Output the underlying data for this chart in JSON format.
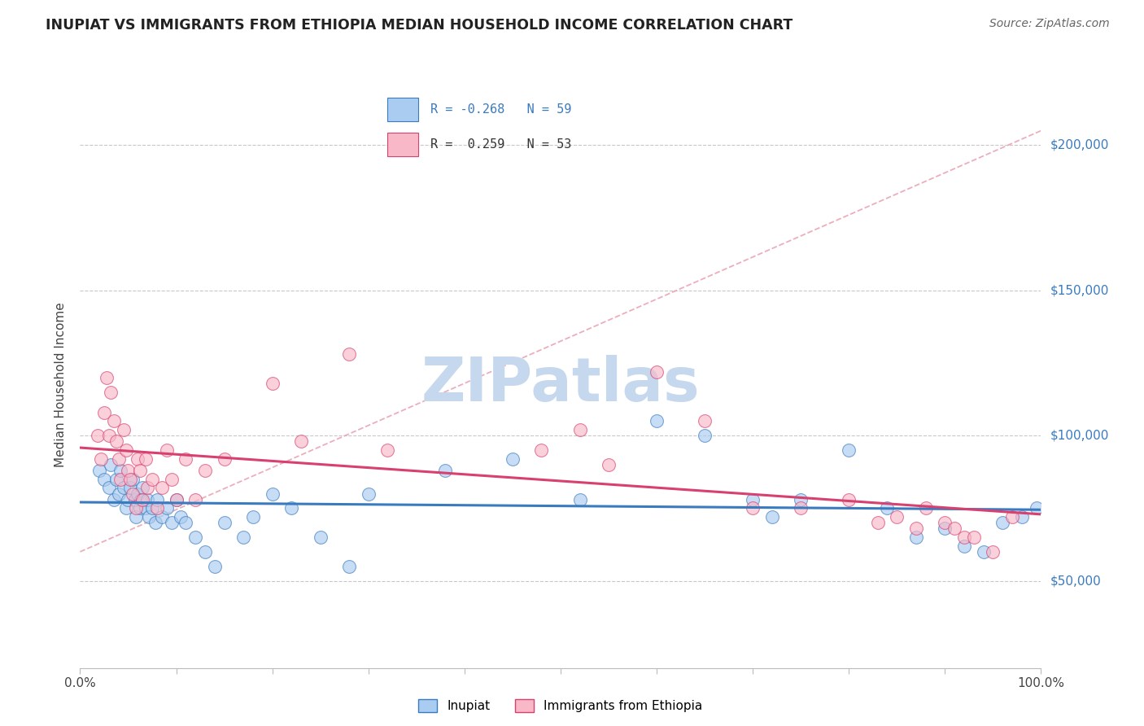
{
  "title": "INUPIAT VS IMMIGRANTS FROM ETHIOPIA MEDIAN HOUSEHOLD INCOME CORRELATION CHART",
  "source": "Source: ZipAtlas.com",
  "ylabel": "Median Household Income",
  "xlim": [
    0,
    1.0
  ],
  "ylim": [
    20000,
    215000
  ],
  "xticks": [
    0,
    0.1,
    0.2,
    0.3,
    0.4,
    0.5,
    0.6,
    0.7,
    0.8,
    0.9,
    1.0
  ],
  "xticklabels": [
    "0.0%",
    "",
    "",
    "",
    "",
    "",
    "",
    "",
    "",
    "",
    "100.0%"
  ],
  "ytick_positions": [
    50000,
    100000,
    150000,
    200000
  ],
  "ytick_labels": [
    "$50,000",
    "$100,000",
    "$150,000",
    "$200,000"
  ],
  "legend_r1": "R = -0.268",
  "legend_n1": "N = 59",
  "legend_r2": "R =  0.259",
  "legend_n2": "N = 53",
  "color_blue": "#aaccf0",
  "color_pink": "#f8b8c8",
  "line_blue": "#3a7bbf",
  "line_pink": "#d84070",
  "line_dashed_color": "#e8a0b0",
  "background": "#ffffff",
  "grid_color": "#c8c8c8",
  "watermark_color": "#c5d8ee",
  "inupiat_x": [
    0.02,
    0.025,
    0.03,
    0.032,
    0.035,
    0.038,
    0.04,
    0.042,
    0.045,
    0.048,
    0.05,
    0.052,
    0.055,
    0.057,
    0.058,
    0.06,
    0.062,
    0.063,
    0.065,
    0.068,
    0.07,
    0.072,
    0.075,
    0.078,
    0.08,
    0.085,
    0.09,
    0.095,
    0.1,
    0.105,
    0.11,
    0.12,
    0.13,
    0.14,
    0.15,
    0.17,
    0.18,
    0.2,
    0.22,
    0.25,
    0.28,
    0.3,
    0.38,
    0.45,
    0.52,
    0.6,
    0.65,
    0.7,
    0.72,
    0.75,
    0.8,
    0.84,
    0.87,
    0.9,
    0.92,
    0.94,
    0.96,
    0.98,
    0.995
  ],
  "inupiat_y": [
    88000,
    85000,
    82000,
    90000,
    78000,
    85000,
    80000,
    88000,
    82000,
    75000,
    78000,
    82000,
    85000,
    78000,
    72000,
    80000,
    75000,
    78000,
    82000,
    75000,
    78000,
    72000,
    75000,
    70000,
    78000,
    72000,
    75000,
    70000,
    78000,
    72000,
    70000,
    65000,
    60000,
    55000,
    70000,
    65000,
    72000,
    80000,
    75000,
    65000,
    55000,
    80000,
    88000,
    92000,
    78000,
    105000,
    100000,
    78000,
    72000,
    78000,
    95000,
    75000,
    65000,
    68000,
    62000,
    60000,
    70000,
    72000,
    75000
  ],
  "ethiopia_x": [
    0.018,
    0.022,
    0.025,
    0.028,
    0.03,
    0.032,
    0.035,
    0.038,
    0.04,
    0.042,
    0.045,
    0.048,
    0.05,
    0.052,
    0.055,
    0.058,
    0.06,
    0.062,
    0.065,
    0.068,
    0.07,
    0.075,
    0.08,
    0.085,
    0.09,
    0.095,
    0.1,
    0.11,
    0.12,
    0.13,
    0.15,
    0.2,
    0.23,
    0.28,
    0.32,
    0.48,
    0.52,
    0.55,
    0.6,
    0.65,
    0.7,
    0.75,
    0.8,
    0.83,
    0.85,
    0.87,
    0.88,
    0.9,
    0.91,
    0.92,
    0.93,
    0.95,
    0.97
  ],
  "ethiopia_y": [
    100000,
    92000,
    108000,
    120000,
    100000,
    115000,
    105000,
    98000,
    92000,
    85000,
    102000,
    95000,
    88000,
    85000,
    80000,
    75000,
    92000,
    88000,
    78000,
    92000,
    82000,
    85000,
    75000,
    82000,
    95000,
    85000,
    78000,
    92000,
    78000,
    88000,
    92000,
    118000,
    98000,
    128000,
    95000,
    95000,
    102000,
    90000,
    122000,
    105000,
    75000,
    75000,
    78000,
    70000,
    72000,
    68000,
    75000,
    70000,
    68000,
    65000,
    65000,
    60000,
    72000
  ]
}
